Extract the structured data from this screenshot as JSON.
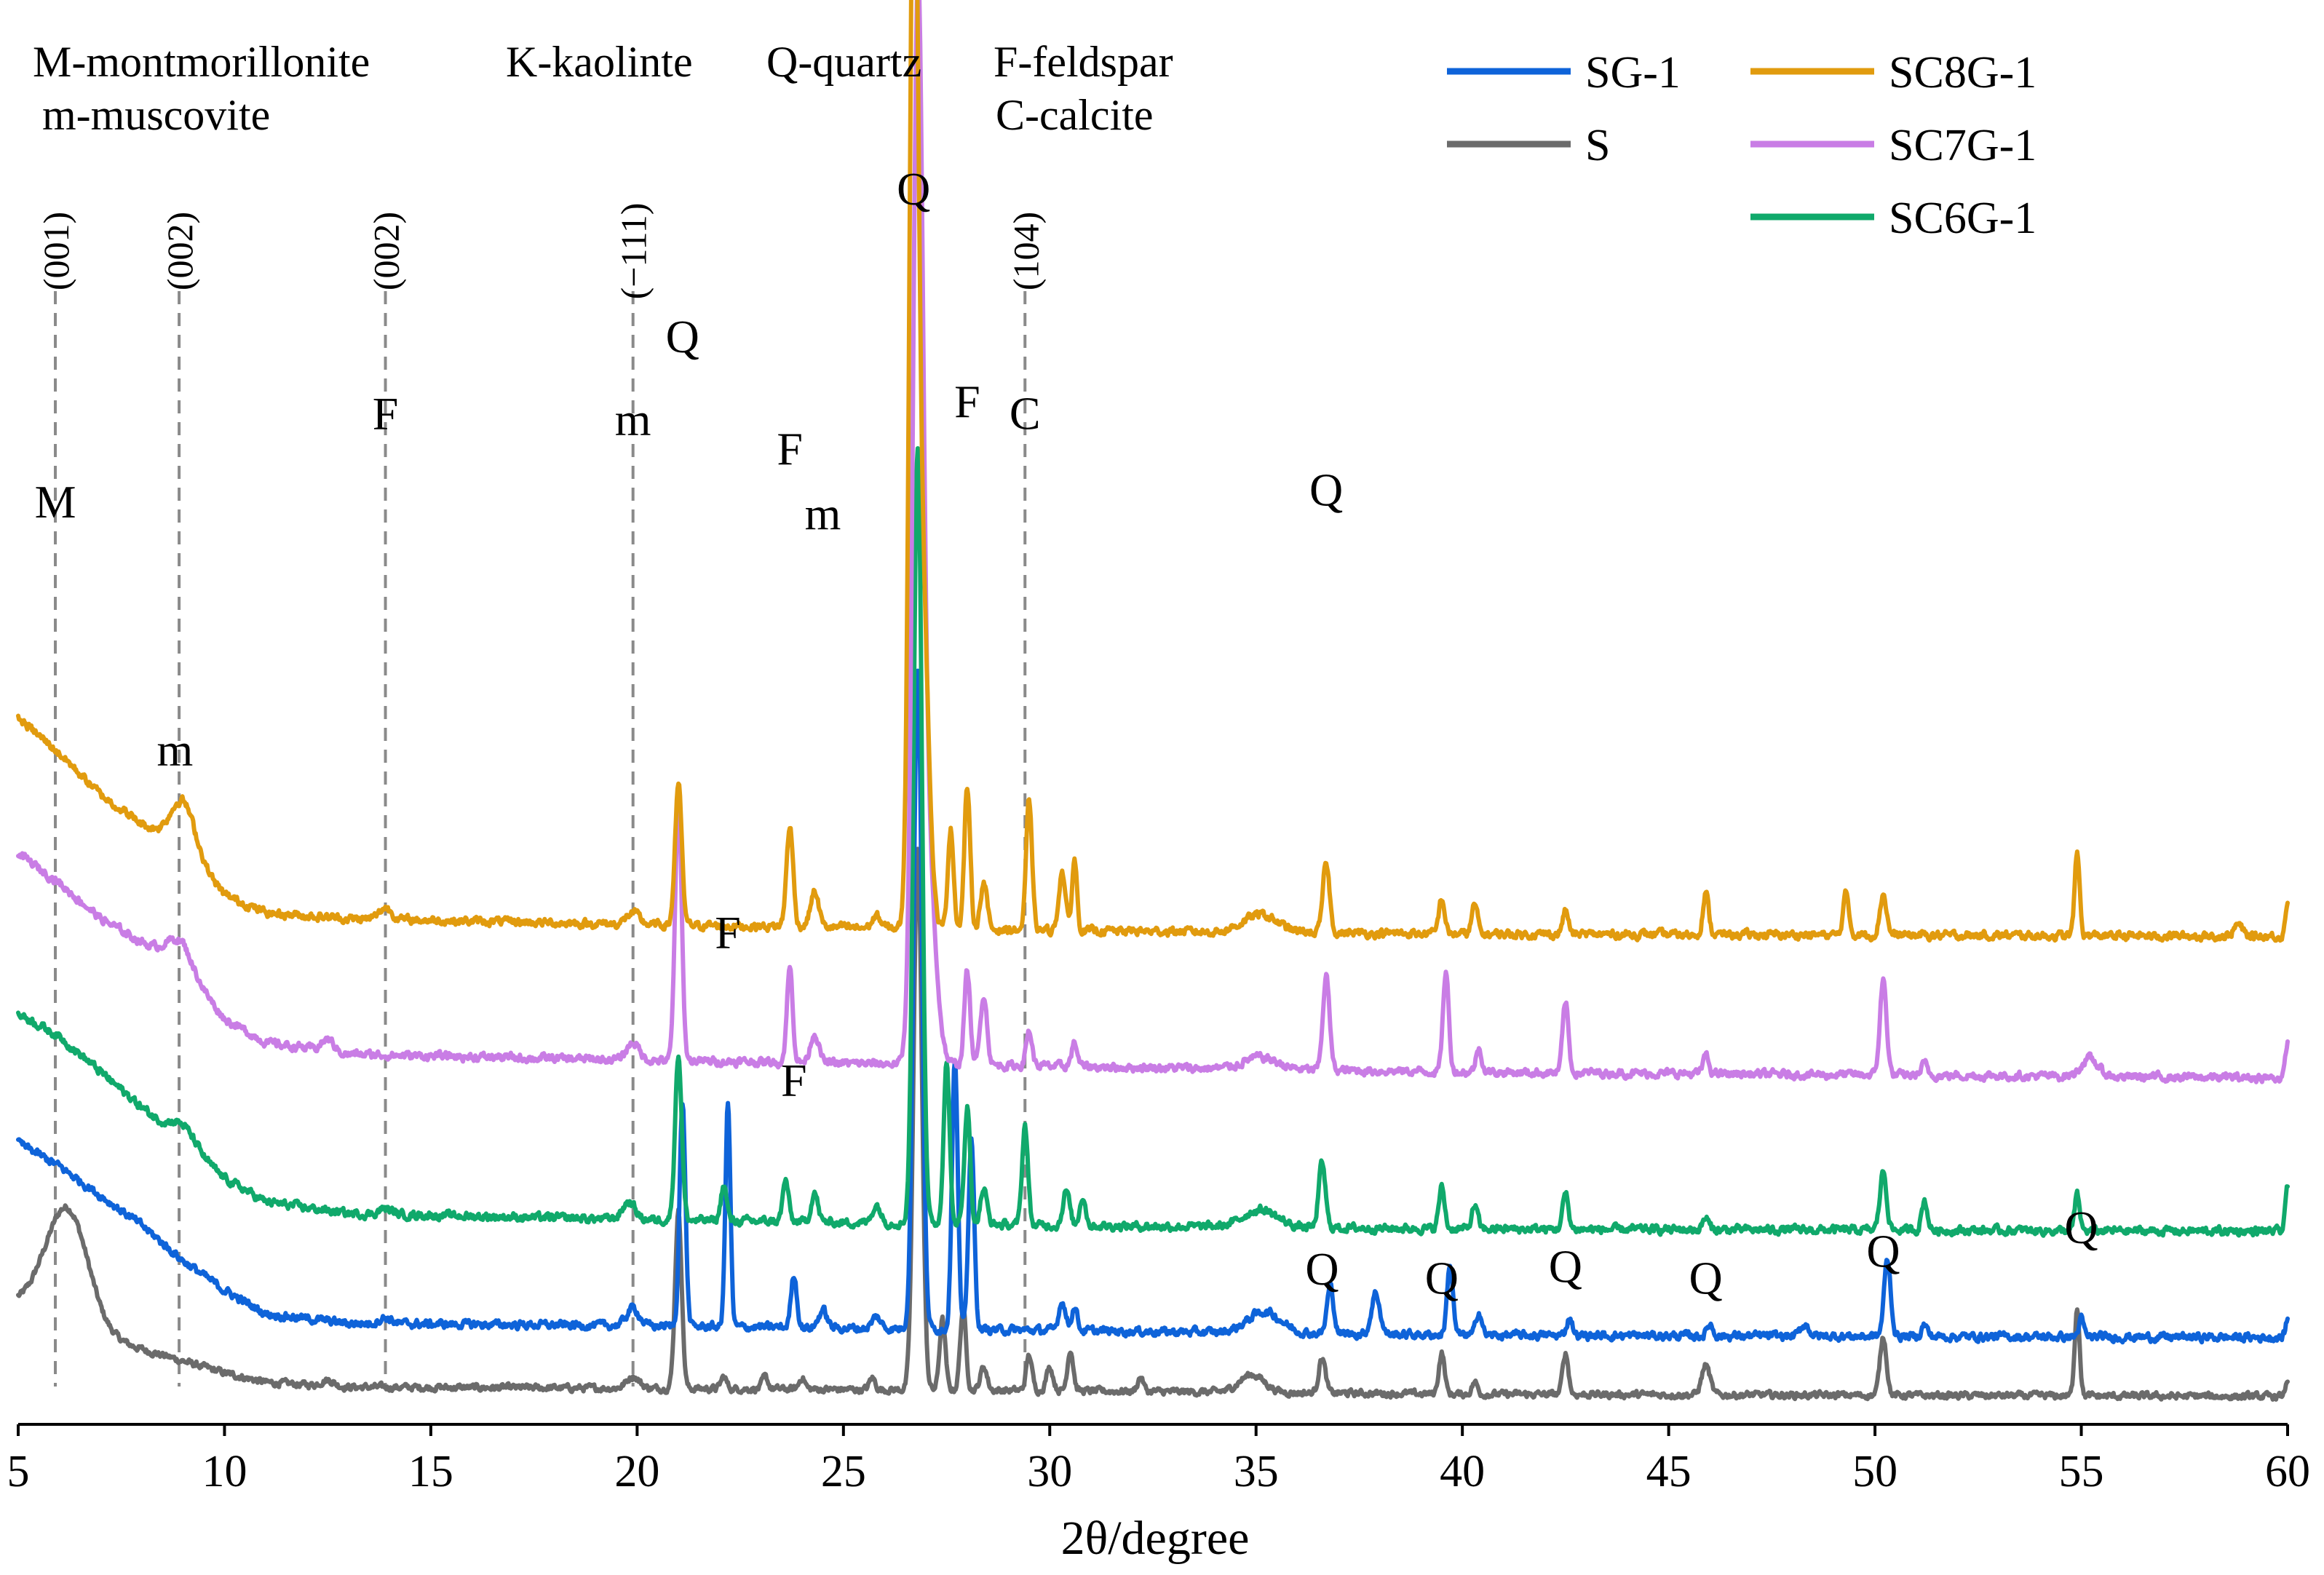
{
  "chart_data": {
    "type": "line",
    "title": "",
    "xlabel": "2θ/degree",
    "ylabel": "",
    "xlim": [
      5,
      60
    ],
    "xticks": [
      5,
      10,
      15,
      20,
      25,
      30,
      35,
      40,
      45,
      50,
      55,
      60
    ],
    "grid": false,
    "legend_position": "top-right",
    "mineral_key": [
      "M-montmorillonite",
      "K-kaolinte",
      "Q-quartz",
      "F-feldspar",
      "m-muscovite",
      "C-calcite"
    ],
    "reference_lines": [
      {
        "x": 5.9,
        "label": "(001)"
      },
      {
        "x": 8.9,
        "label": "(002)"
      },
      {
        "x": 13.9,
        "label": "(002)"
      },
      {
        "x": 19.9,
        "label": "(−111)"
      },
      {
        "x": 29.4,
        "label": "(104)"
      }
    ],
    "series": [
      {
        "name": "SC8G-1",
        "color": "#E19B0E",
        "offset": 4.0,
        "noise": 0.03,
        "bg": [
          [
            5,
            5.85
          ],
          [
            6,
            5.55
          ],
          [
            7,
            5.2
          ],
          [
            8,
            4.95
          ],
          [
            9,
            4.75
          ],
          [
            10,
            4.35
          ],
          [
            11,
            4.2
          ],
          [
            13,
            4.15
          ],
          [
            20,
            4.1
          ],
          [
            30,
            4.05
          ],
          [
            40,
            4.02
          ],
          [
            60,
            4.0
          ]
        ],
        "peaks": [
          [
            9.0,
            0.4,
            0.3
          ],
          [
            13.9,
            0.1,
            0.15
          ],
          [
            19.9,
            0.1,
            0.15
          ],
          [
            21.0,
            1.2,
            0.08
          ],
          [
            23.7,
            0.85,
            0.08
          ],
          [
            24.3,
            0.3,
            0.1
          ],
          [
            25.8,
            0.1,
            0.1
          ],
          [
            26.7,
            8.6,
            0.1
          ],
          [
            26.9,
            3.0,
            0.15
          ],
          [
            27.6,
            0.85,
            0.07
          ],
          [
            28.0,
            1.2,
            0.07
          ],
          [
            28.4,
            0.4,
            0.08
          ],
          [
            29.5,
            1.1,
            0.07
          ],
          [
            30.3,
            0.5,
            0.08
          ],
          [
            30.6,
            0.6,
            0.06
          ],
          [
            35.1,
            0.15,
            0.4
          ],
          [
            36.7,
            0.6,
            0.08
          ],
          [
            39.5,
            0.3,
            0.07
          ],
          [
            40.3,
            0.25,
            0.07
          ],
          [
            42.5,
            0.2,
            0.07
          ],
          [
            45.9,
            0.35,
            0.07
          ],
          [
            49.3,
            0.35,
            0.07
          ],
          [
            50.2,
            0.35,
            0.08
          ],
          [
            54.9,
            0.7,
            0.06
          ],
          [
            58.8,
            0.1,
            0.1
          ],
          [
            60.0,
            0.3,
            0.05
          ]
        ]
      },
      {
        "name": "SC7G-1",
        "color": "#C97DE5",
        "offset": 2.8,
        "noise": 0.03,
        "bg": [
          [
            5,
            4.7
          ],
          [
            6,
            4.45
          ],
          [
            7,
            4.15
          ],
          [
            8,
            3.95
          ],
          [
            9,
            3.75
          ],
          [
            10,
            3.3
          ],
          [
            11,
            3.1
          ],
          [
            13,
            3.0
          ],
          [
            20,
            2.95
          ],
          [
            30,
            2.9
          ],
          [
            40,
            2.85
          ],
          [
            60,
            2.8
          ]
        ],
        "peaks": [
          [
            8.9,
            0.2,
            0.3
          ],
          [
            12.5,
            0.1,
            0.15
          ],
          [
            19.9,
            0.15,
            0.15
          ],
          [
            21.0,
            2.2,
            0.08
          ],
          [
            23.7,
            0.8,
            0.07
          ],
          [
            24.3,
            0.25,
            0.1
          ],
          [
            26.8,
            8.0,
            0.12
          ],
          [
            27.0,
            2.0,
            0.2
          ],
          [
            28.0,
            0.8,
            0.07
          ],
          [
            28.4,
            0.6,
            0.08
          ],
          [
            29.5,
            0.3,
            0.07
          ],
          [
            30.6,
            0.2,
            0.07
          ],
          [
            35.1,
            0.1,
            0.4
          ],
          [
            36.7,
            0.8,
            0.08
          ],
          [
            39.6,
            0.85,
            0.07
          ],
          [
            40.4,
            0.2,
            0.07
          ],
          [
            42.5,
            0.6,
            0.07
          ],
          [
            45.9,
            0.15,
            0.07
          ],
          [
            50.2,
            0.8,
            0.08
          ],
          [
            51.2,
            0.1,
            0.07
          ],
          [
            55.2,
            0.15,
            0.2
          ],
          [
            60.0,
            0.3,
            0.05
          ]
        ]
      },
      {
        "name": "SC6G-1",
        "color": "#10A96B",
        "offset": 1.5,
        "noise": 0.03,
        "bg": [
          [
            5,
            3.35
          ],
          [
            6,
            3.15
          ],
          [
            7,
            2.85
          ],
          [
            8,
            2.55
          ],
          [
            9,
            2.25
          ],
          [
            10,
            1.95
          ],
          [
            11,
            1.75
          ],
          [
            13,
            1.65
          ],
          [
            20,
            1.6
          ],
          [
            30,
            1.55
          ],
          [
            40,
            1.52
          ],
          [
            60,
            1.5
          ]
        ],
        "peaks": [
          [
            9.0,
            0.15,
            0.3
          ],
          [
            13.9,
            0.05,
            0.15
          ],
          [
            19.8,
            0.15,
            0.15
          ],
          [
            21.0,
            1.4,
            0.08
          ],
          [
            22.1,
            0.3,
            0.07
          ],
          [
            23.6,
            0.35,
            0.07
          ],
          [
            24.3,
            0.25,
            0.08
          ],
          [
            25.8,
            0.15,
            0.1
          ],
          [
            26.8,
            6.6,
            0.1
          ],
          [
            27.5,
            1.4,
            0.07
          ],
          [
            28.0,
            1.0,
            0.07
          ],
          [
            28.4,
            0.3,
            0.08
          ],
          [
            29.4,
            0.85,
            0.07
          ],
          [
            30.4,
            0.3,
            0.08
          ],
          [
            30.8,
            0.25,
            0.07
          ],
          [
            35.1,
            0.15,
            0.4
          ],
          [
            36.6,
            0.55,
            0.08
          ],
          [
            39.5,
            0.35,
            0.07
          ],
          [
            40.3,
            0.2,
            0.07
          ],
          [
            42.5,
            0.3,
            0.07
          ],
          [
            45.9,
            0.1,
            0.07
          ],
          [
            50.2,
            0.5,
            0.08
          ],
          [
            51.2,
            0.25,
            0.07
          ],
          [
            54.9,
            0.3,
            0.06
          ],
          [
            60.0,
            0.4,
            0.05
          ]
        ]
      },
      {
        "name": "SG-1",
        "color": "#0E63D9",
        "offset": 0.6,
        "noise": 0.03,
        "bg": [
          [
            5,
            2.25
          ],
          [
            6,
            2.05
          ],
          [
            7,
            1.8
          ],
          [
            8,
            1.55
          ],
          [
            9,
            1.25
          ],
          [
            10,
            1.0
          ],
          [
            11,
            0.8
          ],
          [
            13,
            0.72
          ],
          [
            20,
            0.7
          ],
          [
            30,
            0.66
          ],
          [
            40,
            0.62
          ],
          [
            60,
            0.6
          ]
        ],
        "peaks": [
          [
            13.9,
            0.05,
            0.15
          ],
          [
            19.9,
            0.15,
            0.15
          ],
          [
            21.1,
            1.9,
            0.07
          ],
          [
            22.2,
            1.9,
            0.06
          ],
          [
            23.8,
            0.45,
            0.07
          ],
          [
            24.5,
            0.15,
            0.1
          ],
          [
            25.8,
            0.1,
            0.1
          ],
          [
            26.8,
            5.6,
            0.1
          ],
          [
            27.7,
            2.3,
            0.07
          ],
          [
            28.1,
            1.6,
            0.07
          ],
          [
            30.3,
            0.25,
            0.08
          ],
          [
            30.6,
            0.2,
            0.07
          ],
          [
            35.2,
            0.18,
            0.4
          ],
          [
            36.8,
            0.4,
            0.08
          ],
          [
            37.9,
            0.35,
            0.1
          ],
          [
            39.7,
            0.6,
            0.07
          ],
          [
            40.4,
            0.2,
            0.07
          ],
          [
            42.6,
            0.15,
            0.07
          ],
          [
            46.0,
            0.1,
            0.07
          ],
          [
            48.3,
            0.1,
            0.1
          ],
          [
            50.3,
            0.65,
            0.08
          ],
          [
            51.2,
            0.1,
            0.07
          ],
          [
            55.0,
            0.15,
            0.06
          ],
          [
            60.0,
            0.15,
            0.05
          ]
        ]
      },
      {
        "name": "S",
        "color": "#6B6B6B",
        "offset": 0.2,
        "noise": 0.025,
        "bg": [
          [
            5,
            0.9
          ],
          [
            5.5,
            0.88
          ],
          [
            7,
            0.6
          ],
          [
            8,
            0.5
          ],
          [
            9,
            0.4
          ],
          [
            10,
            0.3
          ],
          [
            11,
            0.22
          ],
          [
            13,
            0.18
          ],
          [
            20,
            0.17
          ],
          [
            30,
            0.15
          ],
          [
            40,
            0.12
          ],
          [
            60,
            0.1
          ]
        ],
        "peaks": [
          [
            6.2,
            0.95,
            0.5
          ],
          [
            12.5,
            0.05,
            0.15
          ],
          [
            19.9,
            0.1,
            0.15
          ],
          [
            21.0,
            1.5,
            0.08
          ],
          [
            22.1,
            0.1,
            0.07
          ],
          [
            23.1,
            0.1,
            0.07
          ],
          [
            24.0,
            0.1,
            0.07
          ],
          [
            25.7,
            0.1,
            0.07
          ],
          [
            26.8,
            4.6,
            0.1
          ],
          [
            27.4,
            0.6,
            0.07
          ],
          [
            27.9,
            0.7,
            0.07
          ],
          [
            28.4,
            0.2,
            0.08
          ],
          [
            29.5,
            0.3,
            0.07
          ],
          [
            30.0,
            0.2,
            0.08
          ],
          [
            30.5,
            0.35,
            0.07
          ],
          [
            32.2,
            0.12,
            0.07
          ],
          [
            34.9,
            0.15,
            0.3
          ],
          [
            36.6,
            0.3,
            0.08
          ],
          [
            39.5,
            0.35,
            0.07
          ],
          [
            40.3,
            0.1,
            0.07
          ],
          [
            42.5,
            0.35,
            0.07
          ],
          [
            45.9,
            0.25,
            0.1
          ],
          [
            50.2,
            0.5,
            0.08
          ],
          [
            54.9,
            0.75,
            0.06
          ],
          [
            60.0,
            0.15,
            0.05
          ]
        ]
      }
    ],
    "ylim": [
      0,
      10.3
    ],
    "peak_labels": [
      {
        "text": "M",
        "x": 5.9,
        "y": 7.55
      },
      {
        "text": "m",
        "x": 19.9,
        "y": 8.25
      },
      {
        "text": "Q",
        "x": 21.1,
        "y": 8.95
      },
      {
        "text": "F",
        "x": 13.9,
        "y": 8.3
      },
      {
        "text": "F",
        "x": 23.7,
        "y": 8.0
      },
      {
        "text": "m",
        "x": 24.5,
        "y": 7.45
      },
      {
        "text": "Q",
        "x": 26.7,
        "y": 10.2
      },
      {
        "text": "F",
        "x": 28.0,
        "y": 8.4
      },
      {
        "text": "C",
        "x": 29.4,
        "y": 8.3
      },
      {
        "text": "Q",
        "x": 36.7,
        "y": 7.65
      },
      {
        "text": "m",
        "x": 8.8,
        "y": 5.45
      },
      {
        "text": "F",
        "x": 22.2,
        "y": 3.9
      },
      {
        "text": "F",
        "x": 23.8,
        "y": 2.65
      },
      {
        "text": "Q",
        "x": 36.6,
        "y": 1.05
      },
      {
        "text": "Q",
        "x": 39.5,
        "y": 0.97
      },
      {
        "text": "Q",
        "x": 42.5,
        "y": 1.07
      },
      {
        "text": "Q",
        "x": 45.9,
        "y": 0.97
      },
      {
        "text": "Q",
        "x": 50.2,
        "y": 1.2
      },
      {
        "text": "Q",
        "x": 55.0,
        "y": 1.4
      }
    ]
  }
}
